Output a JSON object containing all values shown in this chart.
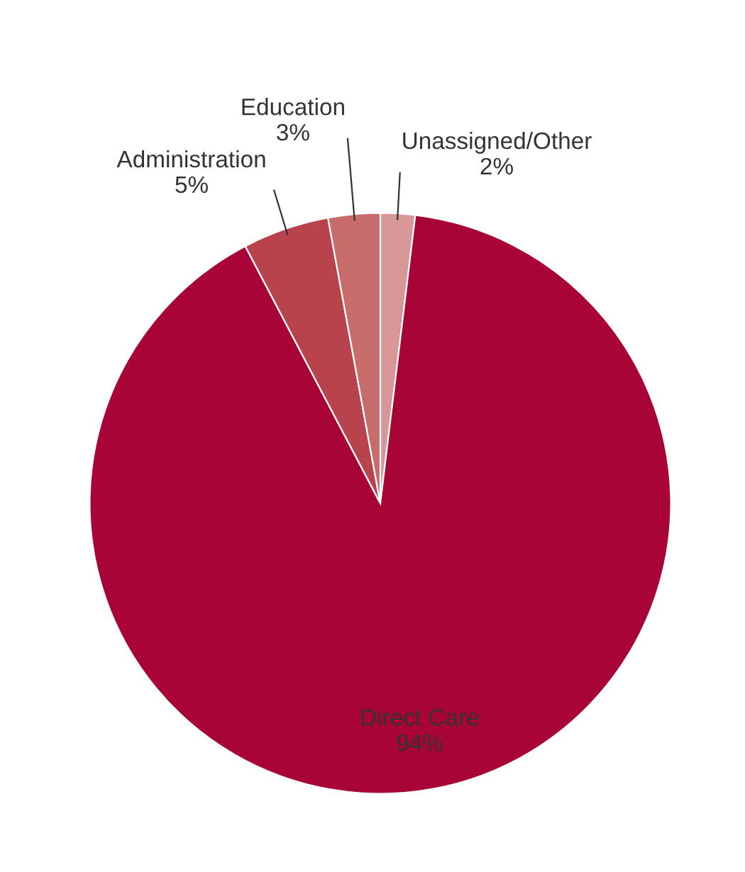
{
  "chart_data": {
    "type": "pie",
    "categories": [
      "Unassigned/Other",
      "Direct Care",
      "Administration",
      "Education"
    ],
    "values": [
      2,
      94,
      5,
      3
    ],
    "value_labels": [
      "2%",
      "94%",
      "5%",
      "3%"
    ],
    "colors": [
      "#d99696",
      "#a80435",
      "#b8434c",
      "#c86b6b"
    ]
  }
}
